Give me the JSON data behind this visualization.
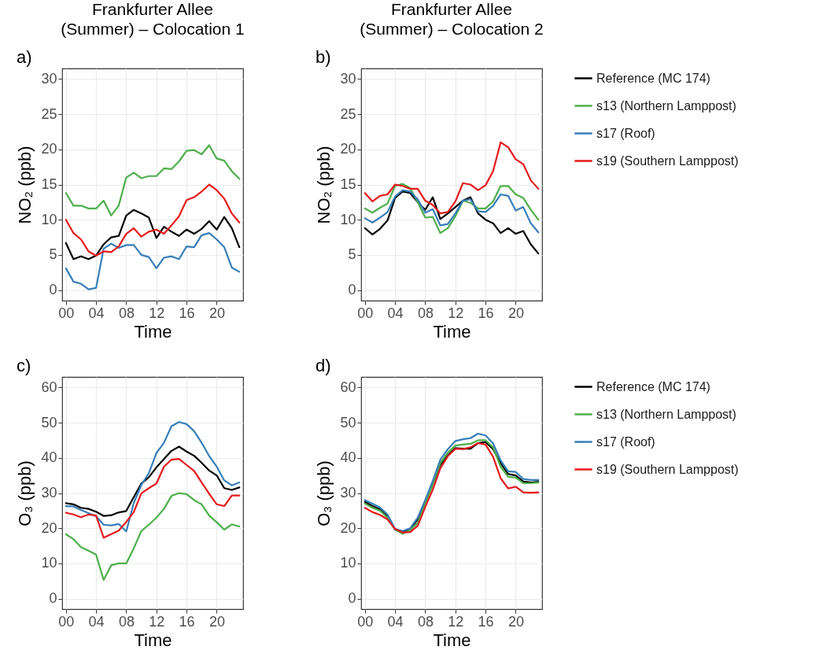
{
  "chart_data": [
    {
      "type": "line",
      "title": "Frankfurter Allee\n(Summer) – Colocation 1",
      "xlabel": "Time",
      "ylabel": "NO₂ (ppb)",
      "annotations": [
        "a)"
      ],
      "x": [
        0,
        1,
        2,
        3,
        4,
        5,
        6,
        7,
        8,
        9,
        10,
        11,
        12,
        13,
        14,
        15,
        16,
        17,
        18,
        19,
        20,
        21,
        22,
        23
      ],
      "xlim": [
        -0.5,
        23.5
      ],
      "xticks": [
        {
          "value": 0,
          "label": "00"
        },
        {
          "value": 4,
          "label": "04"
        },
        {
          "value": 8,
          "label": "08"
        },
        12,
        16,
        20
      ],
      "ylim": [
        -1.5,
        31.5
      ],
      "yticks": [
        0,
        5,
        10,
        15,
        20,
        25,
        30
      ],
      "grid": true,
      "legend": false,
      "series": [
        {
          "color": "#000000",
          "values": [
            6.7,
            4.4,
            4.8,
            4.4,
            4.9,
            6.5,
            7.5,
            7.7,
            10.6,
            11.4,
            10.9,
            10.3,
            7.4,
            9.0,
            8.3,
            7.7,
            8.6,
            8.0,
            8.7,
            9.8,
            8.6,
            10.4,
            8.8,
            6.1
          ]
        },
        {
          "color": "#4daf4a",
          "values": [
            13.8,
            12.0,
            12.0,
            11.6,
            11.6,
            12.7,
            10.6,
            12.0,
            16.0,
            16.7,
            15.9,
            16.2,
            16.2,
            17.3,
            17.2,
            18.3,
            19.8,
            19.9,
            19.3,
            20.6,
            18.7,
            18.4,
            16.9,
            15.8
          ]
        },
        {
          "color": "#377eb8",
          "values": [
            3.1,
            1.2,
            0.9,
            0.1,
            0.3,
            5.9,
            6.6,
            6.0,
            6.4,
            6.4,
            5.0,
            4.7,
            3.1,
            4.6,
            4.8,
            4.4,
            6.2,
            6.1,
            7.8,
            8.1,
            7.2,
            6.1,
            3.2,
            2.6
          ]
        },
        {
          "color": "#e41a1c",
          "values": [
            10.0,
            8.1,
            7.2,
            5.5,
            4.9,
            5.5,
            5.4,
            6.2,
            8.0,
            8.8,
            7.6,
            8.3,
            8.6,
            8.0,
            9.2,
            10.5,
            12.8,
            13.2,
            14.0,
            15.0,
            14.2,
            13.0,
            10.9,
            9.6
          ]
        }
      ]
    },
    {
      "type": "line",
      "title": "Frankfurter Allee\n(Summer) – Colocation 2",
      "xlabel": "Time",
      "ylabel": "NO₂ (ppb)",
      "annotations": [
        "b)"
      ],
      "x": [
        0,
        1,
        2,
        3,
        4,
        5,
        6,
        7,
        8,
        9,
        10,
        11,
        12,
        13,
        14,
        15,
        16,
        17,
        18,
        19,
        20,
        21,
        22,
        23
      ],
      "xlim": [
        -0.5,
        23.5
      ],
      "xticks": [
        {
          "value": 0,
          "label": "00"
        },
        {
          "value": 4,
          "label": "04"
        },
        {
          "value": 8,
          "label": "08"
        },
        12,
        16,
        20
      ],
      "ylim": [
        -1.5,
        31.5
      ],
      "yticks": [
        0,
        5,
        10,
        15,
        20,
        25,
        30
      ],
      "grid": true,
      "legend": "right",
      "series": [
        {
          "name": "Reference (MC 174)",
          "color": "#000000",
          "values": [
            8.8,
            7.9,
            8.7,
            9.9,
            13.1,
            14.0,
            13.8,
            12.5,
            11.4,
            13.2,
            10.1,
            10.9,
            11.8,
            12.7,
            13.2,
            10.9,
            10.0,
            9.5,
            8.1,
            8.8,
            8.0,
            8.4,
            6.5,
            5.2
          ]
        },
        {
          "name": "s13 (Northern Lamppost)",
          "color": "#4daf4a",
          "values": [
            11.6,
            11.0,
            11.7,
            12.3,
            14.8,
            15.1,
            14.5,
            12.5,
            10.3,
            10.4,
            8.1,
            8.8,
            10.5,
            12.7,
            12.4,
            11.6,
            11.6,
            12.6,
            14.8,
            14.8,
            13.6,
            13.1,
            11.4,
            10.0
          ]
        },
        {
          "name": "s17 (Roof)",
          "color": "#377eb8",
          "values": [
            10.2,
            9.6,
            10.3,
            11.1,
            13.3,
            14.2,
            14.0,
            12.9,
            11.0,
            11.5,
            9.2,
            9.4,
            10.9,
            12.7,
            12.9,
            11.2,
            11.1,
            12.0,
            13.6,
            13.4,
            11.3,
            11.8,
            9.5,
            8.2
          ]
        },
        {
          "name": "s19 (Southern Lamppost)",
          "color": "#e41a1c",
          "values": [
            13.8,
            12.6,
            13.4,
            13.6,
            15.0,
            14.8,
            14.4,
            14.4,
            12.7,
            12.1,
            10.9,
            11.1,
            12.6,
            15.2,
            15.0,
            14.2,
            14.9,
            16.9,
            21.0,
            20.3,
            18.6,
            17.9,
            15.6,
            14.4
          ]
        }
      ]
    },
    {
      "type": "line",
      "xlabel": "Time",
      "ylabel": "O₃ (ppb)",
      "annotations": [
        "c)"
      ],
      "x": [
        0,
        1,
        2,
        3,
        4,
        5,
        6,
        7,
        8,
        9,
        10,
        11,
        12,
        13,
        14,
        15,
        16,
        17,
        18,
        19,
        20,
        21,
        22,
        23
      ],
      "xlim": [
        -0.5,
        23.5
      ],
      "xticks": [
        {
          "value": 0,
          "label": "00"
        },
        {
          "value": 4,
          "label": "04"
        },
        {
          "value": 8,
          "label": "08"
        },
        12,
        16,
        20
      ],
      "ylim": [
        -3,
        63
      ],
      "yticks": [
        0,
        10,
        20,
        30,
        40,
        50,
        60
      ],
      "grid": true,
      "legend": false,
      "series": [
        {
          "color": "#000000",
          "values": [
            27.1,
            26.8,
            25.8,
            25.5,
            24.7,
            23.5,
            23.7,
            24.5,
            24.9,
            28.9,
            32.7,
            34.5,
            37.3,
            39.7,
            42.0,
            43.2,
            41.8,
            40.6,
            38.6,
            36.4,
            35.0,
            31.4,
            30.9,
            31.6
          ]
        },
        {
          "color": "#4daf4a",
          "values": [
            18.3,
            16.9,
            14.6,
            13.6,
            12.5,
            5.3,
            9.5,
            10.0,
            10.0,
            14.3,
            19.2,
            21.0,
            23.0,
            25.5,
            29.2,
            30.0,
            29.7,
            28.0,
            26.8,
            23.6,
            21.7,
            19.6,
            21.1,
            20.5
          ]
        },
        {
          "color": "#377eb8",
          "values": [
            26.3,
            26.2,
            25.2,
            24.3,
            23.4,
            21.0,
            20.8,
            21.2,
            19.1,
            27.2,
            32.3,
            35.7,
            41.4,
            44.3,
            49.0,
            50.2,
            49.6,
            47.6,
            44.3,
            40.5,
            37.5,
            33.6,
            32.2,
            33.0
          ]
        },
        {
          "color": "#e41a1c",
          "values": [
            24.4,
            23.9,
            23.1,
            23.9,
            23.6,
            17.3,
            18.3,
            19.3,
            21.8,
            24.6,
            29.9,
            31.4,
            32.7,
            37.5,
            39.5,
            39.7,
            38.0,
            36.3,
            33.0,
            29.8,
            26.8,
            26.3,
            29.3,
            29.3
          ]
        }
      ]
    },
    {
      "type": "line",
      "xlabel": "Time",
      "ylabel": "O₃ (ppb)",
      "annotations": [
        "d)"
      ],
      "x": [
        0,
        1,
        2,
        3,
        4,
        5,
        6,
        7,
        8,
        9,
        10,
        11,
        12,
        13,
        14,
        15,
        16,
        17,
        18,
        19,
        20,
        21,
        22,
        23
      ],
      "xlim": [
        -0.5,
        23.5
      ],
      "xticks": [
        {
          "value": 0,
          "label": "00"
        },
        {
          "value": 4,
          "label": "04"
        },
        {
          "value": 8,
          "label": "08"
        },
        12,
        16,
        20
      ],
      "ylim": [
        -3,
        63
      ],
      "yticks": [
        0,
        10,
        20,
        30,
        40,
        50,
        60
      ],
      "grid": true,
      "legend": "right",
      "series": [
        {
          "name": "Reference (MC 174)",
          "color": "#000000",
          "values": [
            27.5,
            26.3,
            25.4,
            23.4,
            19.6,
            18.7,
            19.8,
            22.5,
            27.8,
            32.5,
            38.0,
            40.8,
            42.8,
            42.6,
            42.6,
            44.2,
            44.5,
            42.5,
            38.5,
            35.4,
            35.0,
            33.3,
            33.0,
            33.2
          ]
        },
        {
          "name": "s13 (Northern Lamppost)",
          "color": "#4daf4a",
          "values": [
            27.0,
            25.8,
            25.0,
            23.0,
            19.7,
            18.4,
            19.5,
            21.5,
            27.0,
            32.5,
            38.5,
            41.5,
            43.5,
            43.8,
            44.0,
            45.0,
            45.0,
            43.0,
            37.5,
            34.6,
            34.4,
            32.8,
            32.8,
            33.0
          ]
        },
        {
          "name": "s17 (Roof)",
          "color": "#377eb8",
          "values": [
            28.0,
            27.0,
            25.9,
            23.9,
            19.8,
            19.2,
            20.0,
            23.0,
            28.0,
            33.5,
            39.5,
            42.5,
            44.8,
            45.3,
            45.6,
            46.9,
            46.4,
            44.1,
            39.3,
            36.2,
            36.0,
            34.0,
            33.7,
            33.7
          ]
        },
        {
          "name": "s19 (Southern Lamppost)",
          "color": "#e41a1c",
          "values": [
            25.8,
            24.6,
            23.8,
            22.5,
            19.8,
            18.8,
            18.9,
            20.7,
            26.0,
            31.0,
            37.0,
            40.5,
            42.6,
            42.5,
            43.0,
            44.2,
            43.8,
            40.3,
            34.2,
            31.3,
            31.8,
            30.2,
            30.1,
            30.2
          ]
        }
      ]
    }
  ]
}
